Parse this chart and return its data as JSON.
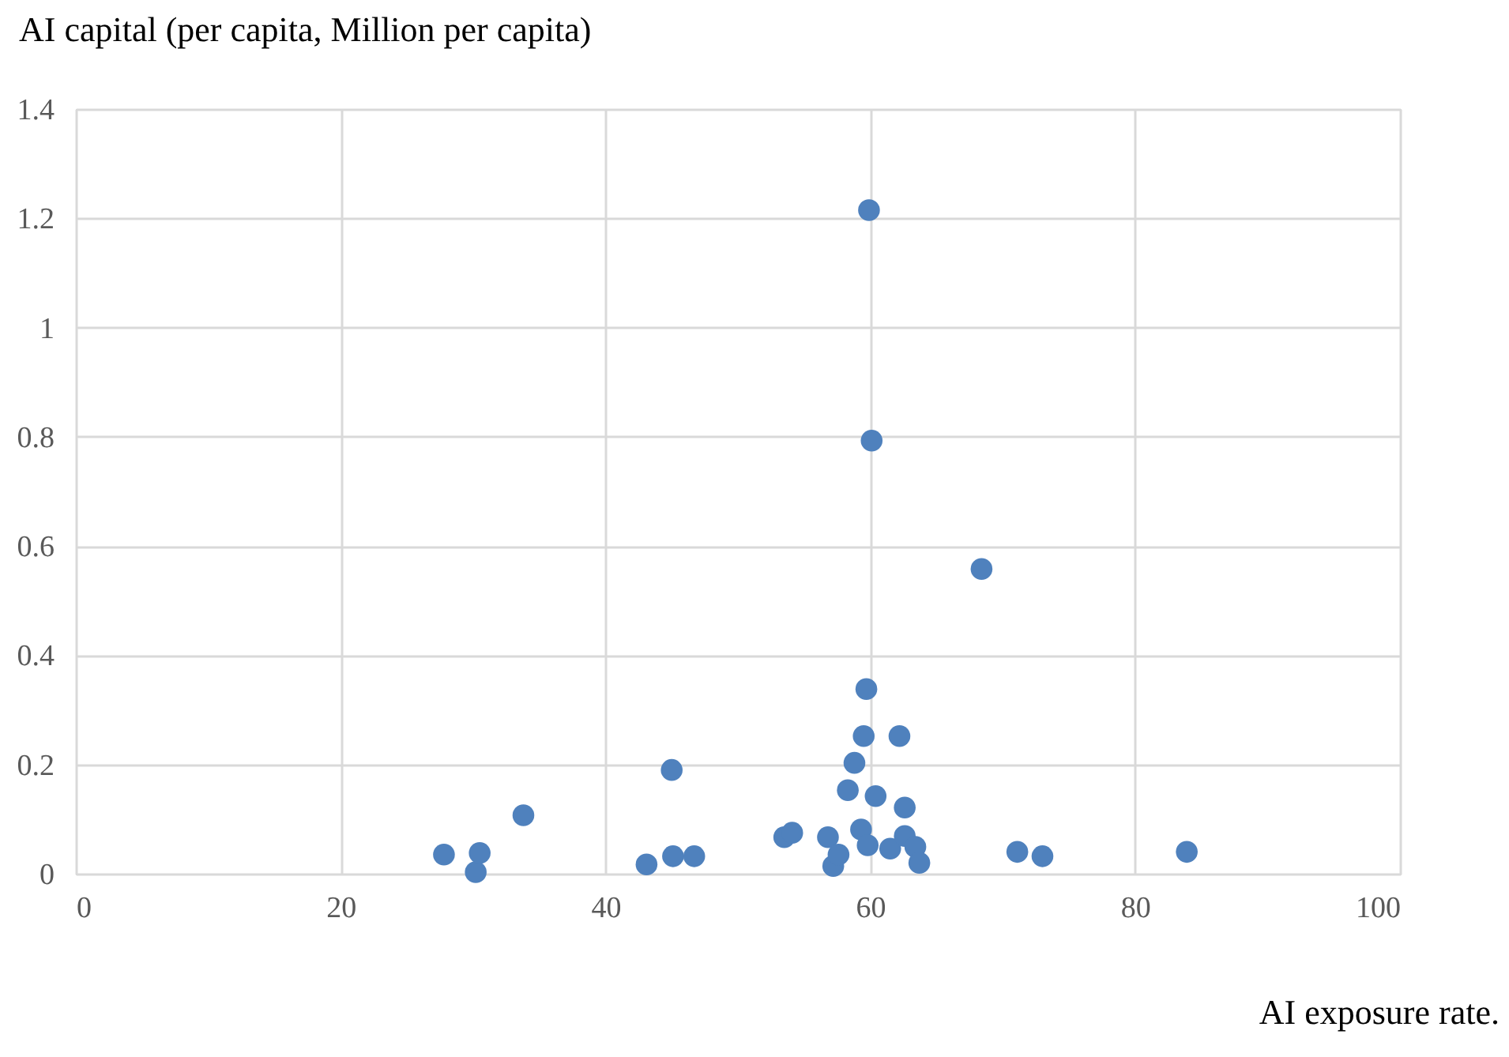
{
  "chart_data": {
    "type": "scatter",
    "xlabel": "AI exposure rate.",
    "ylabel": "AI capital (per capita, Million per capita)",
    "x": [
      27.8,
      30.2,
      30.5,
      33.8,
      43.1,
      45.0,
      45.1,
      46.7,
      53.5,
      54.1,
      56.8,
      57.2,
      57.6,
      58.3,
      58.8,
      59.3,
      59.5,
      59.7,
      59.8,
      59.9,
      60.1,
      60.4,
      61.5,
      62.2,
      62.6,
      62.6,
      63.4,
      63.7,
      68.4,
      71.1,
      73.0,
      83.9
    ],
    "values": [
      0.035,
      0.003,
      0.038,
      0.107,
      0.017,
      0.19,
      0.032,
      0.032,
      0.067,
      0.075,
      0.067,
      0.014,
      0.035,
      0.153,
      0.203,
      0.081,
      0.252,
      0.338,
      0.052,
      1.215,
      0.793,
      0.142,
      0.046,
      0.252,
      0.121,
      0.069,
      0.049,
      0.02,
      0.558,
      0.04,
      0.032,
      0.04
    ],
    "color": "#4f81bd",
    "marker": "circle",
    "xlim": [
      0,
      100
    ],
    "xticks": [
      0,
      20,
      40,
      60,
      80,
      100
    ],
    "ylim": [
      0,
      1.4
    ],
    "yticks": [
      0,
      0.2,
      0.4,
      0.6,
      0.8,
      1,
      1.2,
      1.4
    ],
    "grid": true
  }
}
